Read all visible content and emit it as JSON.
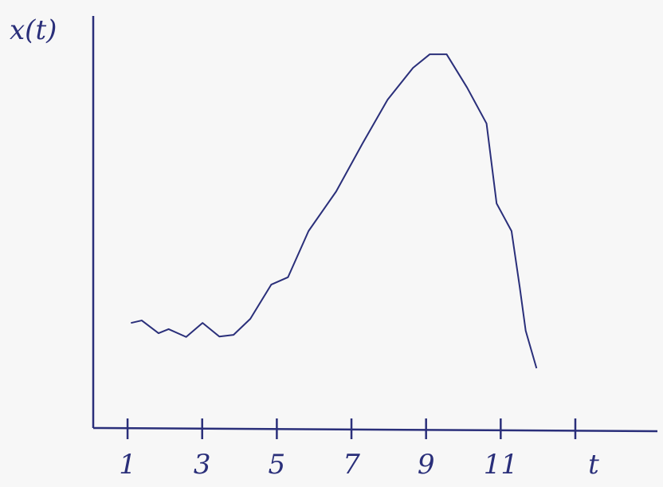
{
  "chart_data": {
    "type": "line",
    "ylabel": "x(t)",
    "xlabel": "t",
    "x": [
      1.09,
      1.38,
      1.83,
      2.1,
      2.57,
      3.01,
      3.46,
      3.84,
      4.29,
      4.85,
      5.3,
      5.85,
      6.59,
      7.3,
      7.97,
      8.65,
      9.1,
      9.55,
      10.1,
      10.62,
      10.89,
      11.29,
      11.51,
      11.67,
      11.96
    ],
    "series": [
      {
        "color": "#2a2f7a",
        "values": [
          25.5,
          26.1,
          23.0,
          24.0,
          22.1,
          25.5,
          22.2,
          22.6,
          26.5,
          34.8,
          36.6,
          47.8,
          57.4,
          69.1,
          79.7,
          87.4,
          90.7,
          90.7,
          82.6,
          73.9,
          54.5,
          47.8,
          34.2,
          23.6,
          14.5
        ]
      }
    ],
    "xlim": [
      0.08,
      15.2
    ],
    "xticks": [
      1,
      3,
      5,
      7,
      9,
      11,
      {
        "value": 13,
        "label": null
      }
    ],
    "ylim": [
      0,
      100
    ]
  }
}
